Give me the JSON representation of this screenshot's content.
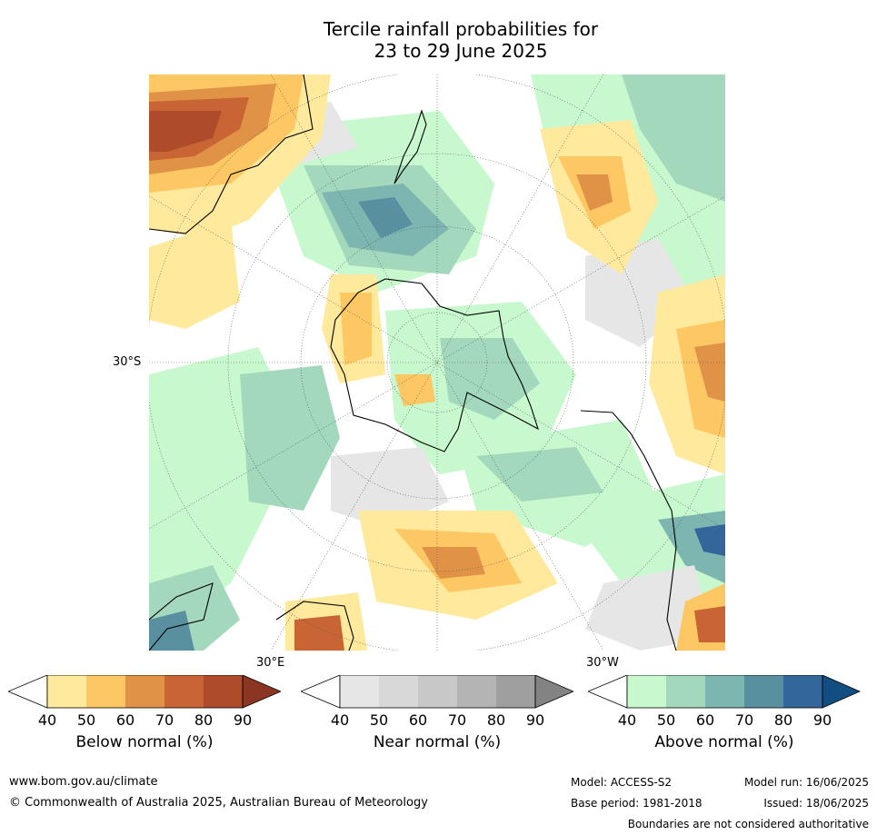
{
  "title": {
    "line1": "Tercile rainfall probabilities for",
    "line2": "23 to 29 June 2025"
  },
  "map": {
    "latitude_labels": [
      "30°S"
    ],
    "longitude_labels": [
      "30°E",
      "30°W"
    ]
  },
  "colorbars": [
    {
      "title": "Below normal (%)",
      "ticks": [
        "40",
        "50",
        "60",
        "70",
        "80",
        "90"
      ],
      "colors": [
        "#ffffff",
        "#fee99d",
        "#fdc863",
        "#e09246",
        "#c96534",
        "#ad4b2b",
        "#8b3523"
      ]
    },
    {
      "title": "Near normal (%)",
      "ticks": [
        "40",
        "50",
        "60",
        "70",
        "80",
        "90"
      ],
      "colors": [
        "#ffffff",
        "#e6e6e6",
        "#d8d8d8",
        "#c8c8c8",
        "#b4b4b4",
        "#9f9f9f",
        "#838383"
      ]
    },
    {
      "title": "Above normal (%)",
      "ticks": [
        "40",
        "50",
        "60",
        "70",
        "80",
        "90"
      ],
      "colors": [
        "#ffffff",
        "#c8f8cd",
        "#a3d8bc",
        "#7db6b0",
        "#5890a0",
        "#33669a",
        "#124e82"
      ]
    }
  ],
  "footer": {
    "website": "www.bom.gov.au/climate",
    "copyright": "© Commonwealth of Australia 2025, Australian Bureau of Meteorology",
    "model": "Model: ACCESS-S2",
    "base_period": "Base period: 1981-2018",
    "model_run": "Model run: 16/06/2025",
    "issued": "Issued: 18/06/2025",
    "disclaimer": "Boundaries are not considered authoritative"
  }
}
